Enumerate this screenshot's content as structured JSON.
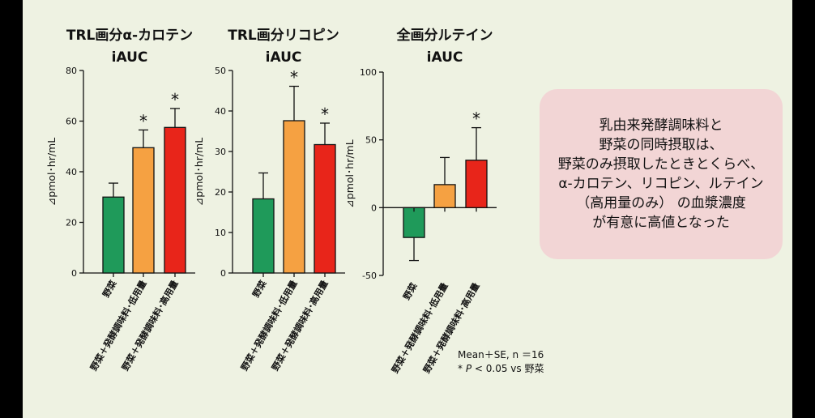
{
  "chart_data": [
    {
      "type": "bar",
      "title": "TRL画分α-カロテン",
      "title_line2": "iAUC",
      "ylabel": "⊿pmol･hr/mL",
      "ylim": [
        0,
        80
      ],
      "yticks": [
        0,
        20,
        40,
        60,
        80
      ],
      "categories": [
        "野菜",
        "野菜＋発酵調味料･低用量",
        "野菜＋発酵調味料･高用量"
      ],
      "values": [
        30,
        49.5,
        57.5
      ],
      "errors": [
        5.5,
        7,
        7.5
      ],
      "significant": [
        "",
        "*",
        "*"
      ],
      "colors": [
        "#1f9a5a",
        "#f5a142",
        "#e8251a"
      ]
    },
    {
      "type": "bar",
      "title": "TRL画分リコピン",
      "title_line2": "iAUC",
      "ylabel": "⊿pmol･hr/mL",
      "ylim": [
        0,
        50
      ],
      "yticks": [
        0,
        10,
        20,
        30,
        40,
        50
      ],
      "categories": [
        "野菜",
        "野菜＋発酵調味料･低用量",
        "野菜＋発酵調味料･高用量"
      ],
      "values": [
        18.3,
        37.6,
        31.7
      ],
      "errors": [
        6.4,
        8.5,
        5.3
      ],
      "significant": [
        "",
        "*",
        "*"
      ],
      "colors": [
        "#1f9a5a",
        "#f5a142",
        "#e8251a"
      ]
    },
    {
      "type": "bar",
      "title": "全画分ルテイン",
      "title_line2": "iAUC",
      "ylabel": "⊿pmol･hr/mL",
      "ylim": [
        -50,
        100
      ],
      "yticks": [
        -50,
        0,
        50,
        100
      ],
      "categories": [
        "野菜",
        "野菜＋発酵調味料･低用量",
        "野菜＋発酵調味料･高用量"
      ],
      "values": [
        -22,
        17,
        35
      ],
      "errors": [
        17,
        20,
        24
      ],
      "significant": [
        "",
        "",
        "*"
      ],
      "colors": [
        "#1f9a5a",
        "#f5a142",
        "#e8251a"
      ]
    }
  ],
  "callout": {
    "lines": [
      "乳由来発酵調味料と",
      "野菜の同時摂取は、",
      "野菜のみ摂取したときとくらべ、",
      "α-カロテン、リコピン、ルテイン",
      "（高用量のみ） の血漿濃度",
      "が有意に高値となった"
    ]
  },
  "footnote": {
    "line1": "Mean＋SE, n ＝16",
    "line2_p": "* P",
    "line2_rest": " < 0.05 vs 野菜"
  }
}
